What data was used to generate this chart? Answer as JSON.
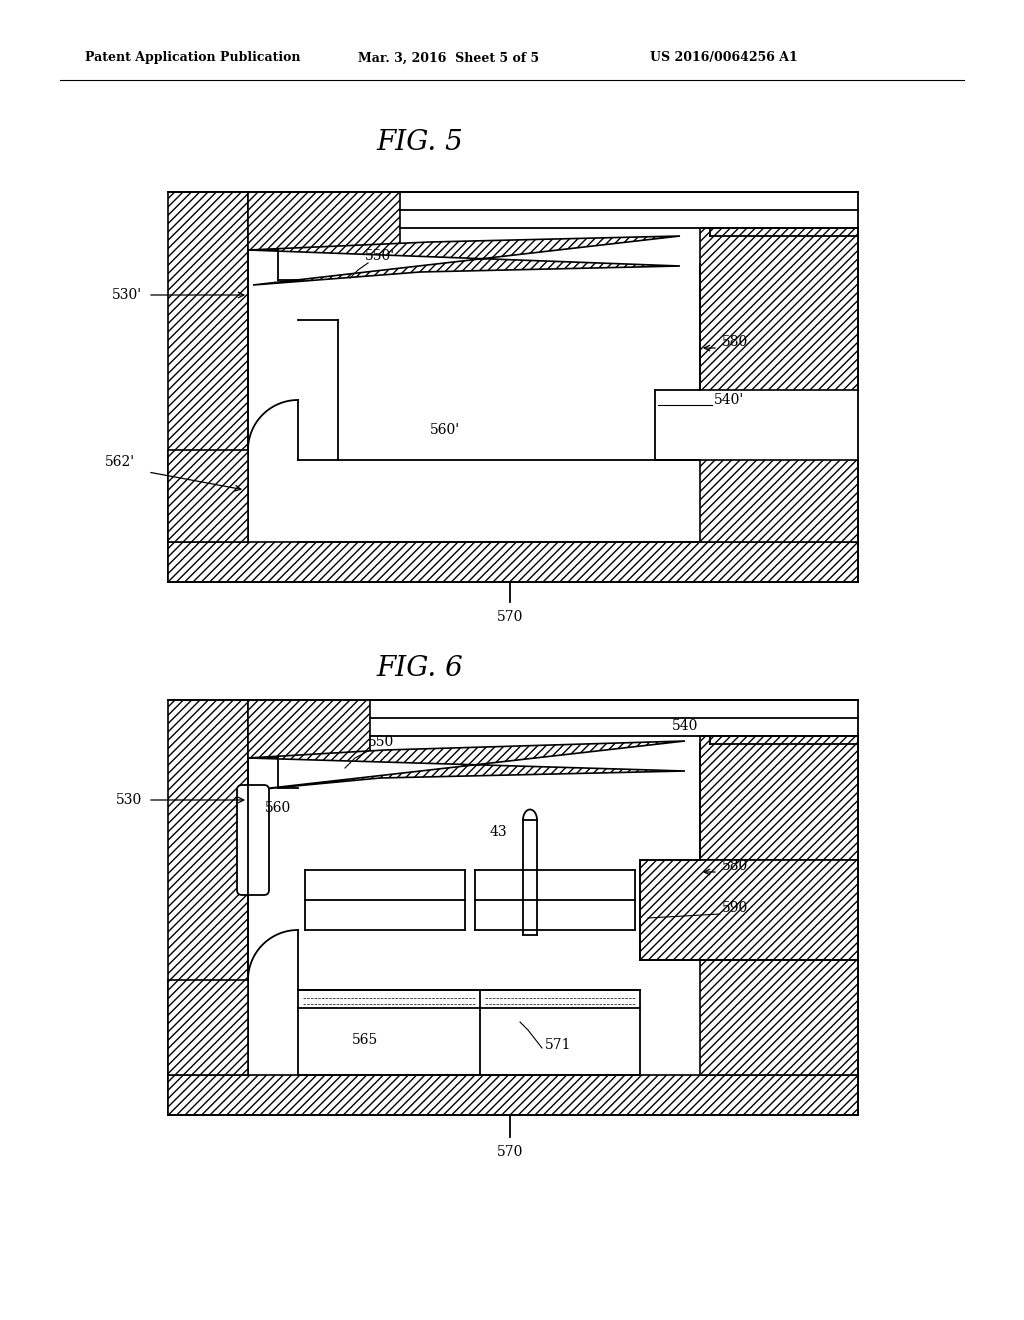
{
  "background_color": "#ffffff",
  "header_left": "Patent Application Publication",
  "header_mid": "Mar. 3, 2016  Sheet 5 of 5",
  "header_right": "US 2016/0064256 A1",
  "fig5_title": "FIG. 5",
  "fig6_title": "FIG. 6",
  "line_color": "#000000",
  "label_fontsize": 10,
  "title_fontsize": 20
}
